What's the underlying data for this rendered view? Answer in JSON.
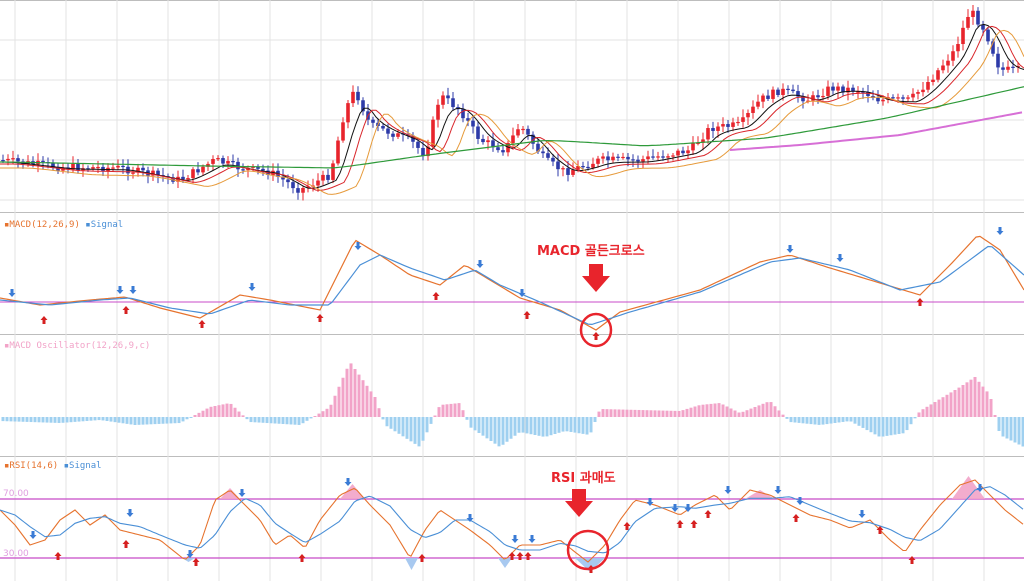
{
  "colors": {
    "up": "#e8242c",
    "down": "#2d3aa8",
    "ma_black": "#111111",
    "ma_red": "#d9262b",
    "ma_orange": "#e69a3a",
    "ma_green": "#2e9a3a",
    "ma_pink": "#d76fd6",
    "macd": "#e6732e",
    "signal": "#4a8fd6",
    "osc_pos": "#f2a3c8",
    "osc_neg": "#9fd0f0",
    "level": "#c84bc8",
    "grid": "#e3e3e3",
    "buy_arrow": "#d62020",
    "sell_arrow": "#3a7bd5",
    "annotation": "#e8242c"
  },
  "chart_data": [
    {
      "type": "candlestick",
      "panel": "price",
      "moving_averages": [
        "black",
        "red",
        "orange",
        "green",
        "pink"
      ]
    },
    {
      "type": "line",
      "panel": "macd",
      "legend": [
        "MACD(12,26,9)",
        "Signal"
      ],
      "annotation": "MACD 골든크로스"
    },
    {
      "type": "bar",
      "panel": "oscillator",
      "legend": [
        "MACD Oscillator(12,26,9,c)"
      ]
    },
    {
      "type": "line",
      "panel": "rsi",
      "legend": [
        "RSI(14,6)",
        "Signal"
      ],
      "levels": [
        70.0,
        30.0
      ],
      "level_labels": [
        "70.00",
        "30.00"
      ],
      "annotation": "RSI 과매도"
    }
  ]
}
